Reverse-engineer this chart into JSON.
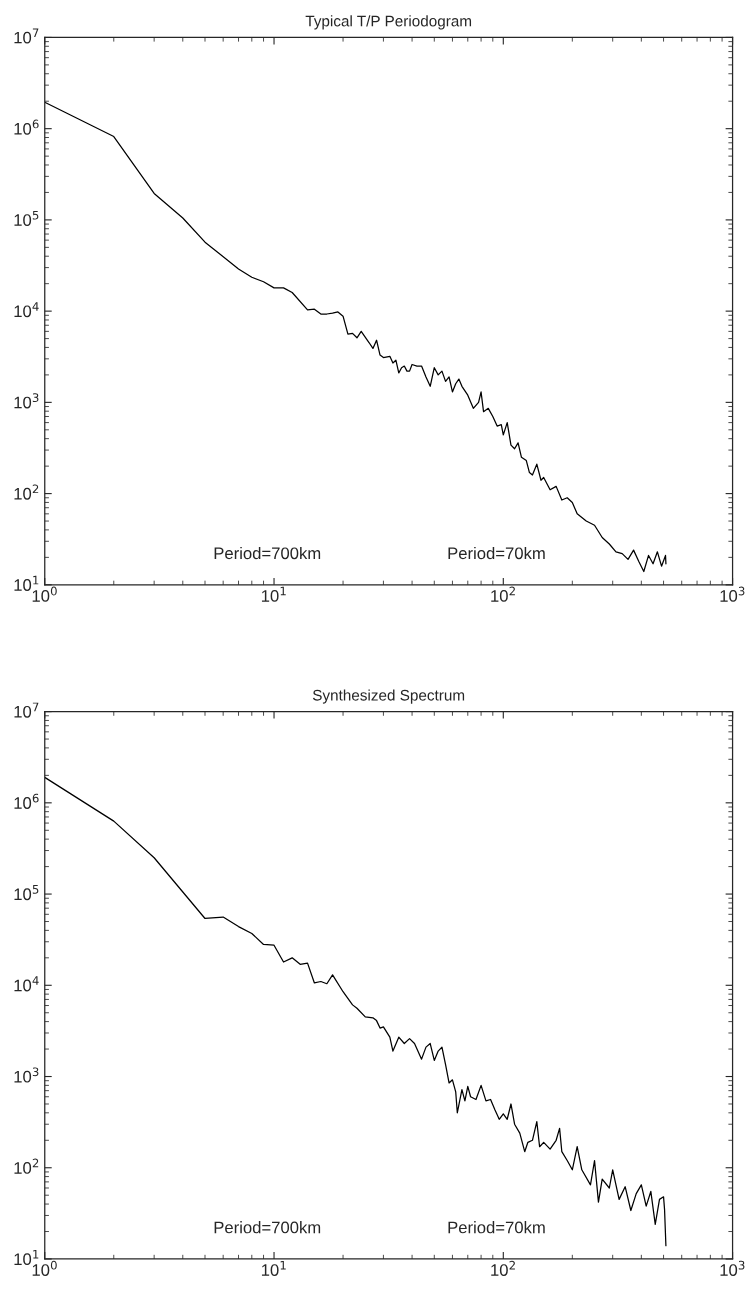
{
  "chart_data": [
    {
      "type": "line",
      "title": "Typical T/P Periodogram",
      "log": "xy",
      "xlim": [
        1,
        1000
      ],
      "ylim": [
        10,
        10000000
      ],
      "xticks": [
        {
          "value": 1,
          "label": "10$^{0}$"
        },
        {
          "value": 10,
          "label": "10$^{1}$"
        },
        {
          "value": 100,
          "label": "10$^{2}$"
        },
        {
          "value": 1000,
          "label": "10$^{3}$"
        }
      ],
      "yticks": [
        {
          "value": 10,
          "label": "10$^{1}$"
        },
        {
          "value": 100,
          "label": "10$^{2}$"
        },
        {
          "value": 1000,
          "label": "10$^{3}$"
        },
        {
          "value": 10000,
          "label": "10$^{4}$"
        },
        {
          "value": 100000,
          "label": "10$^{5}$"
        },
        {
          "value": 1000000,
          "label": "10$^{6}$"
        },
        {
          "value": 10000000,
          "label": "10$^{7}$"
        }
      ],
      "grid": false,
      "legend": false,
      "marker": "none",
      "line_style": "solid",
      "annotations": [
        "Period=700km",
        "Period=70km"
      ],
      "series": [
        {
          "color": "#000000",
          "x": [
            1,
            2,
            3,
            4,
            5,
            7,
            8,
            9,
            10,
            11,
            12,
            14,
            15,
            16,
            17,
            18,
            19,
            20,
            21,
            22,
            23,
            24,
            26,
            27,
            28,
            29,
            30,
            32,
            33,
            34,
            35,
            36,
            37,
            38,
            39,
            40,
            42,
            44,
            46,
            48,
            50,
            52,
            54,
            56,
            58,
            60,
            62,
            64,
            66,
            70,
            74,
            78,
            80,
            82,
            86,
            90,
            94,
            98,
            100,
            104,
            108,
            112,
            116,
            120,
            126,
            130,
            134,
            140,
            146,
            150,
            160,
            170,
            180,
            190,
            200,
            210,
            230,
            250,
            270,
            290,
            310,
            330,
            350,
            370,
            390,
            410,
            430,
            450,
            470,
            490,
            510,
            512
          ],
          "values": [
            1950000,
            820000,
            195000,
            105000,
            57000,
            29000,
            23500,
            21000,
            18000,
            18000,
            16000,
            10300,
            10500,
            9300,
            9300,
            9500,
            9800,
            8800,
            5600,
            5700,
            5100,
            6000,
            4500,
            3900,
            4800,
            3300,
            3100,
            3200,
            2700,
            2900,
            2100,
            2400,
            2500,
            2200,
            2200,
            2600,
            2500,
            2500,
            1900,
            1500,
            2400,
            2000,
            2200,
            1700,
            1900,
            1300,
            1600,
            1800,
            1500,
            1200,
            860,
            1000,
            1300,
            790,
            860,
            700,
            550,
            570,
            440,
            600,
            340,
            310,
            360,
            250,
            230,
            170,
            160,
            210,
            140,
            150,
            110,
            120,
            85,
            90,
            80,
            60,
            50,
            45,
            33,
            28,
            23,
            22,
            19,
            24,
            18,
            14,
            21,
            17,
            23,
            16,
            21,
            17
          ]
        }
      ]
    },
    {
      "type": "line",
      "title": "Synthesized Spectrum",
      "log": "xy",
      "xlim": [
        1,
        1000
      ],
      "ylim": [
        10,
        10000000
      ],
      "xticks": [
        {
          "value": 1,
          "label": "10$^{0}$"
        },
        {
          "value": 10,
          "label": "10$^{1}$"
        },
        {
          "value": 100,
          "label": "10$^{2}$"
        },
        {
          "value": 1000,
          "label": "10$^{3}$"
        }
      ],
      "yticks": [
        {
          "value": 10,
          "label": "10$^{1}$"
        },
        {
          "value": 100,
          "label": "10$^{2}$"
        },
        {
          "value": 1000,
          "label": "10$^{3}$"
        },
        {
          "value": 10000,
          "label": "10$^{4}$"
        },
        {
          "value": 100000,
          "label": "10$^{5}$"
        },
        {
          "value": 1000000,
          "label": "10$^{6}$"
        },
        {
          "value": 10000000,
          "label": "10$^{7}$"
        }
      ],
      "grid": false,
      "legend": false,
      "marker": "none",
      "line_style": "solid",
      "annotations": [
        "Period=700km",
        "Period=70km"
      ],
      "series": [
        {
          "color": "#000000",
          "x": [
            1,
            2,
            3,
            5,
            6,
            7,
            8,
            9,
            10,
            11,
            12,
            13,
            14,
            15,
            16,
            17,
            18,
            20,
            22,
            23,
            25,
            27,
            28,
            29,
            30,
            32,
            33,
            35,
            37,
            39,
            41,
            44,
            46,
            48,
            50,
            52,
            54,
            56,
            58,
            60,
            62,
            63,
            66,
            68,
            70,
            72,
            76,
            80,
            84,
            88,
            92,
            96,
            100,
            104,
            108,
            112,
            118,
            124,
            128,
            134,
            140,
            144,
            150,
            160,
            170,
            176,
            180,
            190,
            200,
            210,
            220,
            240,
            250,
            260,
            270,
            290,
            300,
            320,
            340,
            360,
            380,
            400,
            420,
            440,
            460,
            480,
            500,
            505,
            512
          ],
          "values": [
            1900000,
            630000,
            250000,
            54000,
            56000,
            44000,
            37000,
            28000,
            27500,
            18000,
            20000,
            17000,
            17500,
            10600,
            11000,
            10400,
            13000,
            8500,
            6100,
            5600,
            4500,
            4400,
            4100,
            3400,
            3500,
            2700,
            1900,
            2700,
            2300,
            2600,
            2300,
            1550,
            2100,
            2300,
            1500,
            1900,
            2100,
            1350,
            850,
            920,
            680,
            400,
            720,
            540,
            780,
            600,
            560,
            800,
            540,
            560,
            430,
            340,
            390,
            340,
            500,
            300,
            240,
            150,
            190,
            200,
            320,
            170,
            190,
            160,
            200,
            270,
            150,
            120,
            95,
            170,
            95,
            65,
            120,
            42,
            75,
            60,
            95,
            45,
            62,
            34,
            52,
            65,
            38,
            55,
            24,
            45,
            48,
            35,
            14
          ]
        }
      ]
    }
  ]
}
